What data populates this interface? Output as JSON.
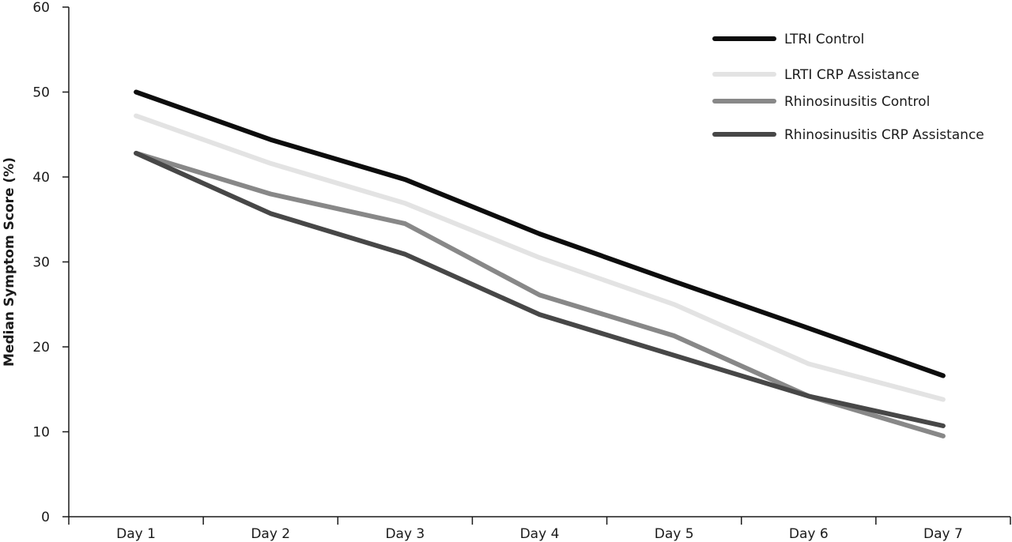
{
  "chart_data": {
    "type": "line",
    "title": "",
    "xlabel": "",
    "ylabel": "Median Symptom Score (%)",
    "categories": [
      "Day 1",
      "Day 2",
      "Day 3",
      "Day 4",
      "Day 5",
      "Day 6",
      "Day 7"
    ],
    "ylim": [
      0,
      60
    ],
    "yticks": [
      "0",
      "10",
      "20",
      "30",
      "40",
      "50",
      "60"
    ],
    "grid": false,
    "legend_position": "top-right",
    "series": [
      {
        "name": "LTRI Control",
        "color": "#0d0d0d",
        "values": [
          50.0,
          44.4,
          39.7,
          33.3,
          27.7,
          22.2,
          16.6
        ]
      },
      {
        "name": "LRTI CRP Assistance",
        "color": "#e3e3e3",
        "values": [
          47.2,
          41.6,
          36.9,
          30.5,
          25.0,
          18.0,
          13.8
        ]
      },
      {
        "name": "Rhinosinusitis Control",
        "color": "#888888",
        "values": [
          42.8,
          38.0,
          34.5,
          26.1,
          21.3,
          14.2,
          9.5
        ]
      },
      {
        "name": "Rhinosinusitis CRP Assistance",
        "color": "#474747",
        "values": [
          42.8,
          35.7,
          30.9,
          23.8,
          19.0,
          14.2,
          10.7
        ]
      }
    ]
  }
}
